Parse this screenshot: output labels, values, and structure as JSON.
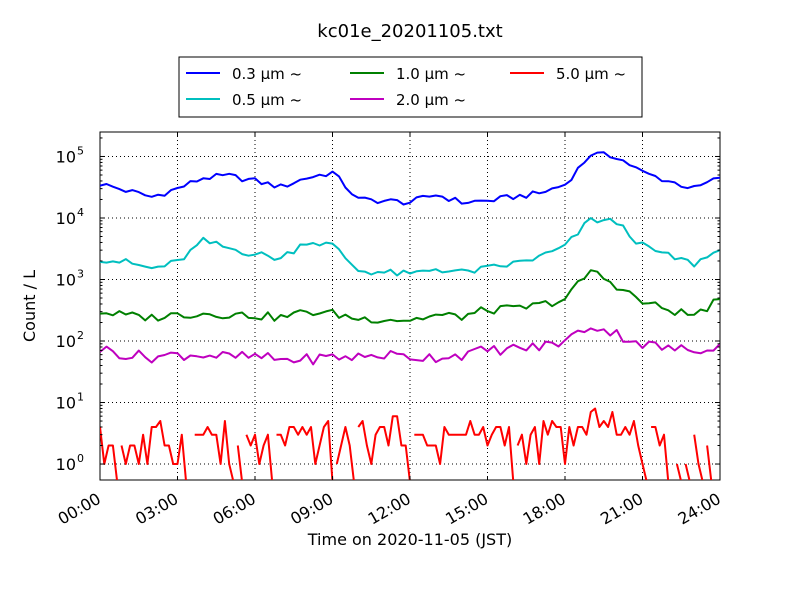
{
  "chart_data": {
    "type": "line",
    "title": "kc01e_20201105.txt",
    "xlabel": "Time on 2020-11-05 (JST)",
    "ylabel": "Count / L",
    "x_range_hours": [
      0,
      24
    ],
    "y_scale": "log",
    "y_range": [
      0.55,
      250000
    ],
    "x_ticks": [
      "00:00",
      "03:00",
      "06:00",
      "09:00",
      "12:00",
      "15:00",
      "18:00",
      "21:00",
      "24:00"
    ],
    "y_ticks": [
      {
        "value": 1,
        "base": "10",
        "exp": "0"
      },
      {
        "value": 10,
        "base": "10",
        "exp": "1"
      },
      {
        "value": 100,
        "base": "10",
        "exp": "2"
      },
      {
        "value": 1000,
        "base": "10",
        "exp": "3"
      },
      {
        "value": 10000,
        "base": "10",
        "exp": "4"
      },
      {
        "value": 100000,
        "base": "10",
        "exp": "5"
      }
    ],
    "grid": true,
    "legend_position": "top-center",
    "x_hours": [
      0,
      1,
      2,
      3,
      4,
      5,
      6,
      7,
      8,
      9,
      10,
      11,
      12,
      13,
      14,
      15,
      16,
      17,
      18,
      19,
      20,
      21,
      22,
      23,
      24
    ],
    "series": [
      {
        "name": "0.3 μm ~",
        "legend": "0.3 μm  ~",
        "color": "#0000ff",
        "values": [
          36000,
          28000,
          22000,
          30000,
          45000,
          48000,
          40000,
          32000,
          45000,
          55000,
          20000,
          19000,
          18000,
          24000,
          18000,
          19000,
          22000,
          25000,
          35000,
          110000,
          100000,
          55000,
          40000,
          30000,
          45000
        ]
      },
      {
        "name": "0.5 μm ~",
        "legend": "0.5 μm  ~",
        "color": "#00bfbf",
        "values": [
          2200,
          1900,
          1500,
          1900,
          4200,
          3200,
          2600,
          2200,
          4200,
          3600,
          1400,
          1300,
          1200,
          1500,
          1300,
          1500,
          1800,
          2300,
          3400,
          9500,
          8500,
          3500,
          2400,
          1800,
          3000
        ]
      },
      {
        "name": "1.0 μm ~",
        "legend": "1.0 μm  ~",
        "color": "#008000",
        "values": [
          300,
          260,
          240,
          270,
          280,
          270,
          260,
          240,
          300,
          280,
          230,
          230,
          220,
          260,
          250,
          320,
          330,
          380,
          480,
          1400,
          800,
          430,
          320,
          260,
          480
        ]
      },
      {
        "name": "2.0 μm ~",
        "legend": "2.0 μm  ~",
        "color": "#bf00bf",
        "values": [
          75,
          60,
          55,
          60,
          60,
          55,
          55,
          50,
          50,
          55,
          55,
          60,
          55,
          55,
          60,
          70,
          75,
          80,
          100,
          180,
          130,
          90,
          75,
          70,
          90
        ]
      },
      {
        "name": "5.0 μm ~",
        "legend": "5.0 μm  ~",
        "color": "#ff0000",
        "values": [
          2,
          2,
          3,
          2,
          3,
          1,
          2,
          2,
          3,
          2,
          3,
          4,
          2,
          3,
          3,
          3,
          2,
          3,
          3,
          6,
          3,
          2,
          1,
          1,
          2
        ]
      }
    ]
  }
}
